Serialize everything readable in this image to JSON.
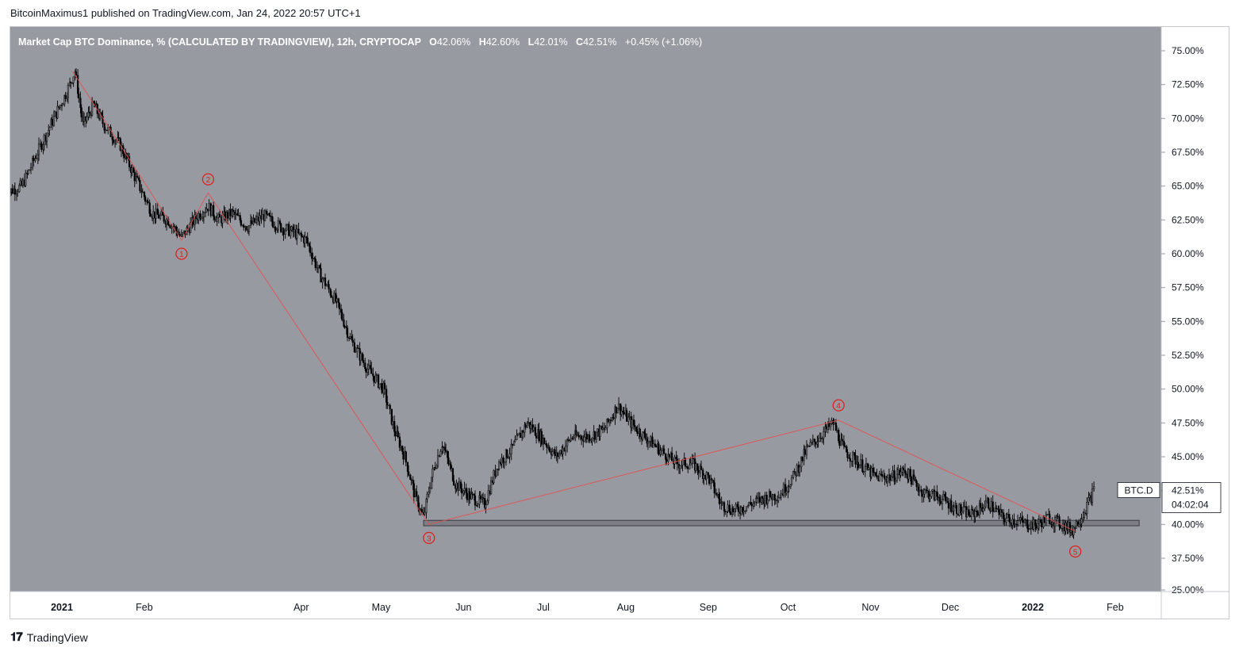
{
  "publisher_line": "BitcoinMaximus1 published on TradingView.com, Jan 24, 2022 20:57 UTC+1",
  "header": {
    "title": "Market Cap BTC Dominance, % (CALCULATED BY TRADINGVIEW), 12h, CRYPTOCAP",
    "open_label": "O",
    "open": "42.06%",
    "high_label": "H",
    "high": "42.60%",
    "low_label": "L",
    "low": "42.01%",
    "close_label": "C",
    "close": "42.51%",
    "change": "+0.45% (+1.06%)"
  },
  "price_badge": {
    "symbol": "BTC.D",
    "price": "42.51%",
    "countdown": "04:02:04"
  },
  "footer": {
    "brand": "TradingView",
    "logo_icon": "tradingview-logo-icon"
  },
  "colors": {
    "plot_bg": "#989aa1",
    "candle": "#000000",
    "wave": "#e84c4c",
    "label": "#e0211b",
    "support_fill": "#7d7f86"
  },
  "chart_data": {
    "type": "candlestick",
    "ylim": [
      25,
      75
    ],
    "y_ticks": [
      "25.00%",
      "37.50%",
      "40.00%",
      "42.50%",
      "45.00%",
      "47.50%",
      "50.00%",
      "52.50%",
      "55.00%",
      "57.50%",
      "60.00%",
      "62.50%",
      "65.00%",
      "67.50%",
      "70.00%",
      "72.50%",
      "75.00%"
    ],
    "x_ticks": [
      {
        "label": "2021",
        "date": "2021-01-01",
        "bold": true
      },
      {
        "label": "Feb",
        "date": "2021-02-01"
      },
      {
        "label": "Apr",
        "date": "2021-04-01"
      },
      {
        "label": "May",
        "date": "2021-05-01"
      },
      {
        "label": "Jun",
        "date": "2021-06-01"
      },
      {
        "label": "Jul",
        "date": "2021-07-01"
      },
      {
        "label": "Aug",
        "date": "2021-08-01"
      },
      {
        "label": "Sep",
        "date": "2021-09-01"
      },
      {
        "label": "Oct",
        "date": "2021-10-01"
      },
      {
        "label": "Nov",
        "date": "2021-11-01"
      },
      {
        "label": "Dec",
        "date": "2021-12-01"
      },
      {
        "label": "2022",
        "date": "2022-01-01",
        "bold": true
      },
      {
        "label": "Feb",
        "date": "2022-02-01"
      }
    ],
    "x_range": [
      "2020-12-11",
      "2022-02-12"
    ],
    "price_path": [
      [
        "2020-12-11",
        64.5
      ],
      [
        "2020-12-17",
        65.0
      ],
      [
        "2020-12-23",
        67.5
      ],
      [
        "2020-12-29",
        70.0
      ],
      [
        "2021-01-03",
        72.0
      ],
      [
        "2021-01-06",
        73.5
      ],
      [
        "2021-01-09",
        69.5
      ],
      [
        "2021-01-13",
        71.0
      ],
      [
        "2021-01-17",
        69.5
      ],
      [
        "2021-01-23",
        68.0
      ],
      [
        "2021-01-29",
        65.5
      ],
      [
        "2021-02-04",
        63.0
      ],
      [
        "2021-02-10",
        62.5
      ],
      [
        "2021-02-15",
        61.2
      ],
      [
        "2021-02-21",
        62.8
      ],
      [
        "2021-02-25",
        63.5
      ],
      [
        "2021-03-01",
        62.5
      ],
      [
        "2021-03-06",
        63.0
      ],
      [
        "2021-03-12",
        62.0
      ],
      [
        "2021-03-18",
        62.8
      ],
      [
        "2021-03-24",
        62.0
      ],
      [
        "2021-03-30",
        61.5
      ],
      [
        "2021-04-03",
        61.0
      ],
      [
        "2021-04-08",
        58.5
      ],
      [
        "2021-04-14",
        56.5
      ],
      [
        "2021-04-20",
        53.5
      ],
      [
        "2021-04-26",
        51.5
      ],
      [
        "2021-05-02",
        50.0
      ],
      [
        "2021-05-06",
        47.0
      ],
      [
        "2021-05-10",
        45.0
      ],
      [
        "2021-05-14",
        42.0
      ],
      [
        "2021-05-17",
        40.5
      ],
      [
        "2021-05-20",
        43.5
      ],
      [
        "2021-05-24",
        46.0
      ],
      [
        "2021-05-29",
        43.0
      ],
      [
        "2021-06-04",
        42.0
      ],
      [
        "2021-06-09",
        41.5
      ],
      [
        "2021-06-14",
        44.5
      ],
      [
        "2021-06-19",
        45.5
      ],
      [
        "2021-06-25",
        47.5
      ],
      [
        "2021-06-30",
        46.5
      ],
      [
        "2021-07-06",
        45.0
      ],
      [
        "2021-07-12",
        46.5
      ],
      [
        "2021-07-18",
        46.5
      ],
      [
        "2021-07-24",
        47.0
      ],
      [
        "2021-07-29",
        48.8
      ],
      [
        "2021-08-03",
        47.5
      ],
      [
        "2021-08-08",
        46.5
      ],
      [
        "2021-08-14",
        45.5
      ],
      [
        "2021-08-20",
        44.5
      ],
      [
        "2021-08-26",
        44.5
      ],
      [
        "2021-09-01",
        43.5
      ],
      [
        "2021-09-06",
        41.5
      ],
      [
        "2021-09-11",
        41.0
      ],
      [
        "2021-09-17",
        41.5
      ],
      [
        "2021-09-23",
        42.0
      ],
      [
        "2021-09-28",
        42.2
      ],
      [
        "2021-10-03",
        43.5
      ],
      [
        "2021-10-08",
        45.5
      ],
      [
        "2021-10-13",
        46.5
      ],
      [
        "2021-10-18",
        47.5
      ],
      [
        "2021-10-22",
        45.5
      ],
      [
        "2021-10-28",
        44.5
      ],
      [
        "2021-11-03",
        43.5
      ],
      [
        "2021-11-09",
        43.5
      ],
      [
        "2021-11-14",
        44.0
      ],
      [
        "2021-11-20",
        42.5
      ],
      [
        "2021-11-27",
        42.0
      ],
      [
        "2021-12-03",
        41.2
      ],
      [
        "2021-12-09",
        40.7
      ],
      [
        "2021-12-15",
        41.6
      ],
      [
        "2021-12-21",
        40.5
      ],
      [
        "2021-12-27",
        40.2
      ],
      [
        "2022-01-02",
        39.9
      ],
      [
        "2022-01-07",
        40.5
      ],
      [
        "2022-01-12",
        40.0
      ],
      [
        "2022-01-16",
        39.6
      ],
      [
        "2022-01-20",
        40.8
      ],
      [
        "2022-01-24",
        42.5
      ]
    ],
    "wave_count": [
      {
        "label": "1",
        "date": "2021-02-15",
        "value": 61.0,
        "text_value": 60.0
      },
      {
        "label": "2",
        "date": "2021-02-25",
        "value": 64.5,
        "text_value": 65.5
      },
      {
        "label": "3",
        "date": "2021-05-19",
        "value": 40.0,
        "text_value": 39.0
      },
      {
        "label": "4",
        "date": "2021-10-20",
        "value": 47.7,
        "text_value": 48.8
      },
      {
        "label": "5",
        "date": "2022-01-17",
        "value": 39.5,
        "text_value": 38.0
      }
    ],
    "wave_start": {
      "date": "2021-01-05",
      "value": 73.5
    },
    "support_zone": {
      "from": "2021-05-17",
      "to": "2022-02-10",
      "low": 39.9,
      "high": 40.3
    }
  }
}
